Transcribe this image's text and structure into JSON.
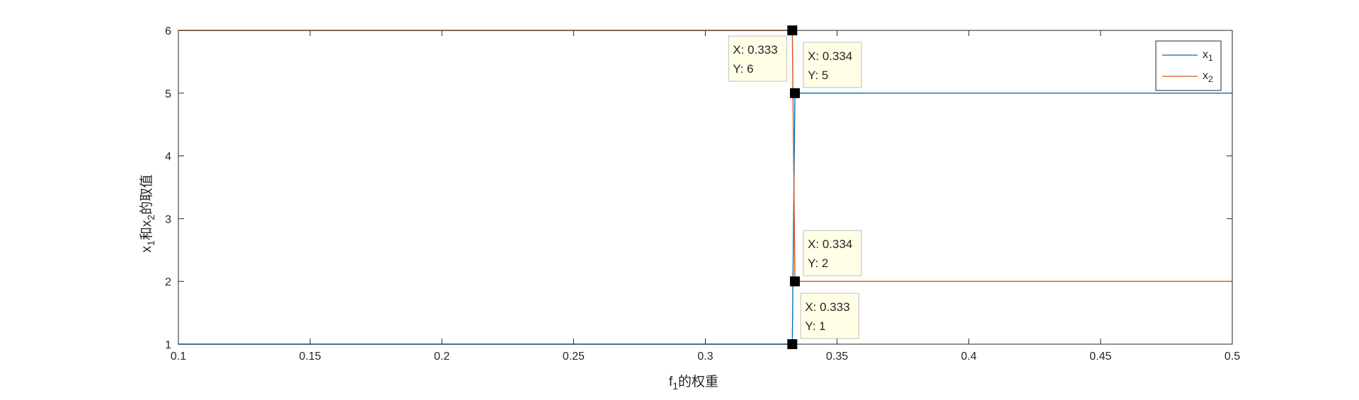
{
  "chart_data": {
    "type": "line",
    "xlabel": {
      "base": "f",
      "sub": "1",
      "rest": "的权重"
    },
    "ylabel": {
      "p1": "x",
      "s1": "1",
      "p2": "和x",
      "s2": "2",
      "p3": "的取值"
    },
    "xlim": [
      0.1,
      0.5
    ],
    "ylim": [
      1,
      6
    ],
    "xticks": [
      0.1,
      0.15,
      0.2,
      0.25,
      0.3,
      0.35,
      0.4,
      0.45,
      0.5
    ],
    "xtick_labels": [
      "0.1",
      "0.15",
      "0.2",
      "0.25",
      "0.3",
      "0.35",
      "0.4",
      "0.45",
      "0.5"
    ],
    "yticks": [
      1,
      2,
      3,
      4,
      5,
      6
    ],
    "ytick_labels": [
      "1",
      "2",
      "3",
      "4",
      "5",
      "6"
    ],
    "grid": false,
    "legend_position": "top-right",
    "series": [
      {
        "name": "x1",
        "legend": {
          "base": "x",
          "sub": "1"
        },
        "color": "#0072BD",
        "x": [
          0.1,
          0.333,
          0.334,
          0.5
        ],
        "y": [
          1,
          1,
          5,
          5
        ]
      },
      {
        "name": "x2",
        "legend": {
          "base": "x",
          "sub": "2"
        },
        "color": "#D95319",
        "x": [
          0.1,
          0.333,
          0.334,
          0.5
        ],
        "y": [
          6,
          6,
          2,
          2
        ]
      }
    ],
    "datatips": [
      {
        "x": 0.333,
        "y": 6,
        "xtext": "X: 0.333",
        "ytext": "Y: 6",
        "place": "below-left"
      },
      {
        "x": 0.334,
        "y": 5,
        "xtext": "X: 0.334",
        "ytext": "Y: 5",
        "place": "above-right"
      },
      {
        "x": 0.334,
        "y": 2,
        "xtext": "X: 0.334",
        "ytext": "Y: 2",
        "place": "above-right"
      },
      {
        "x": 0.333,
        "y": 1,
        "xtext": "X: 0.333",
        "ytext": "Y: 1",
        "place": "above-right"
      }
    ]
  }
}
